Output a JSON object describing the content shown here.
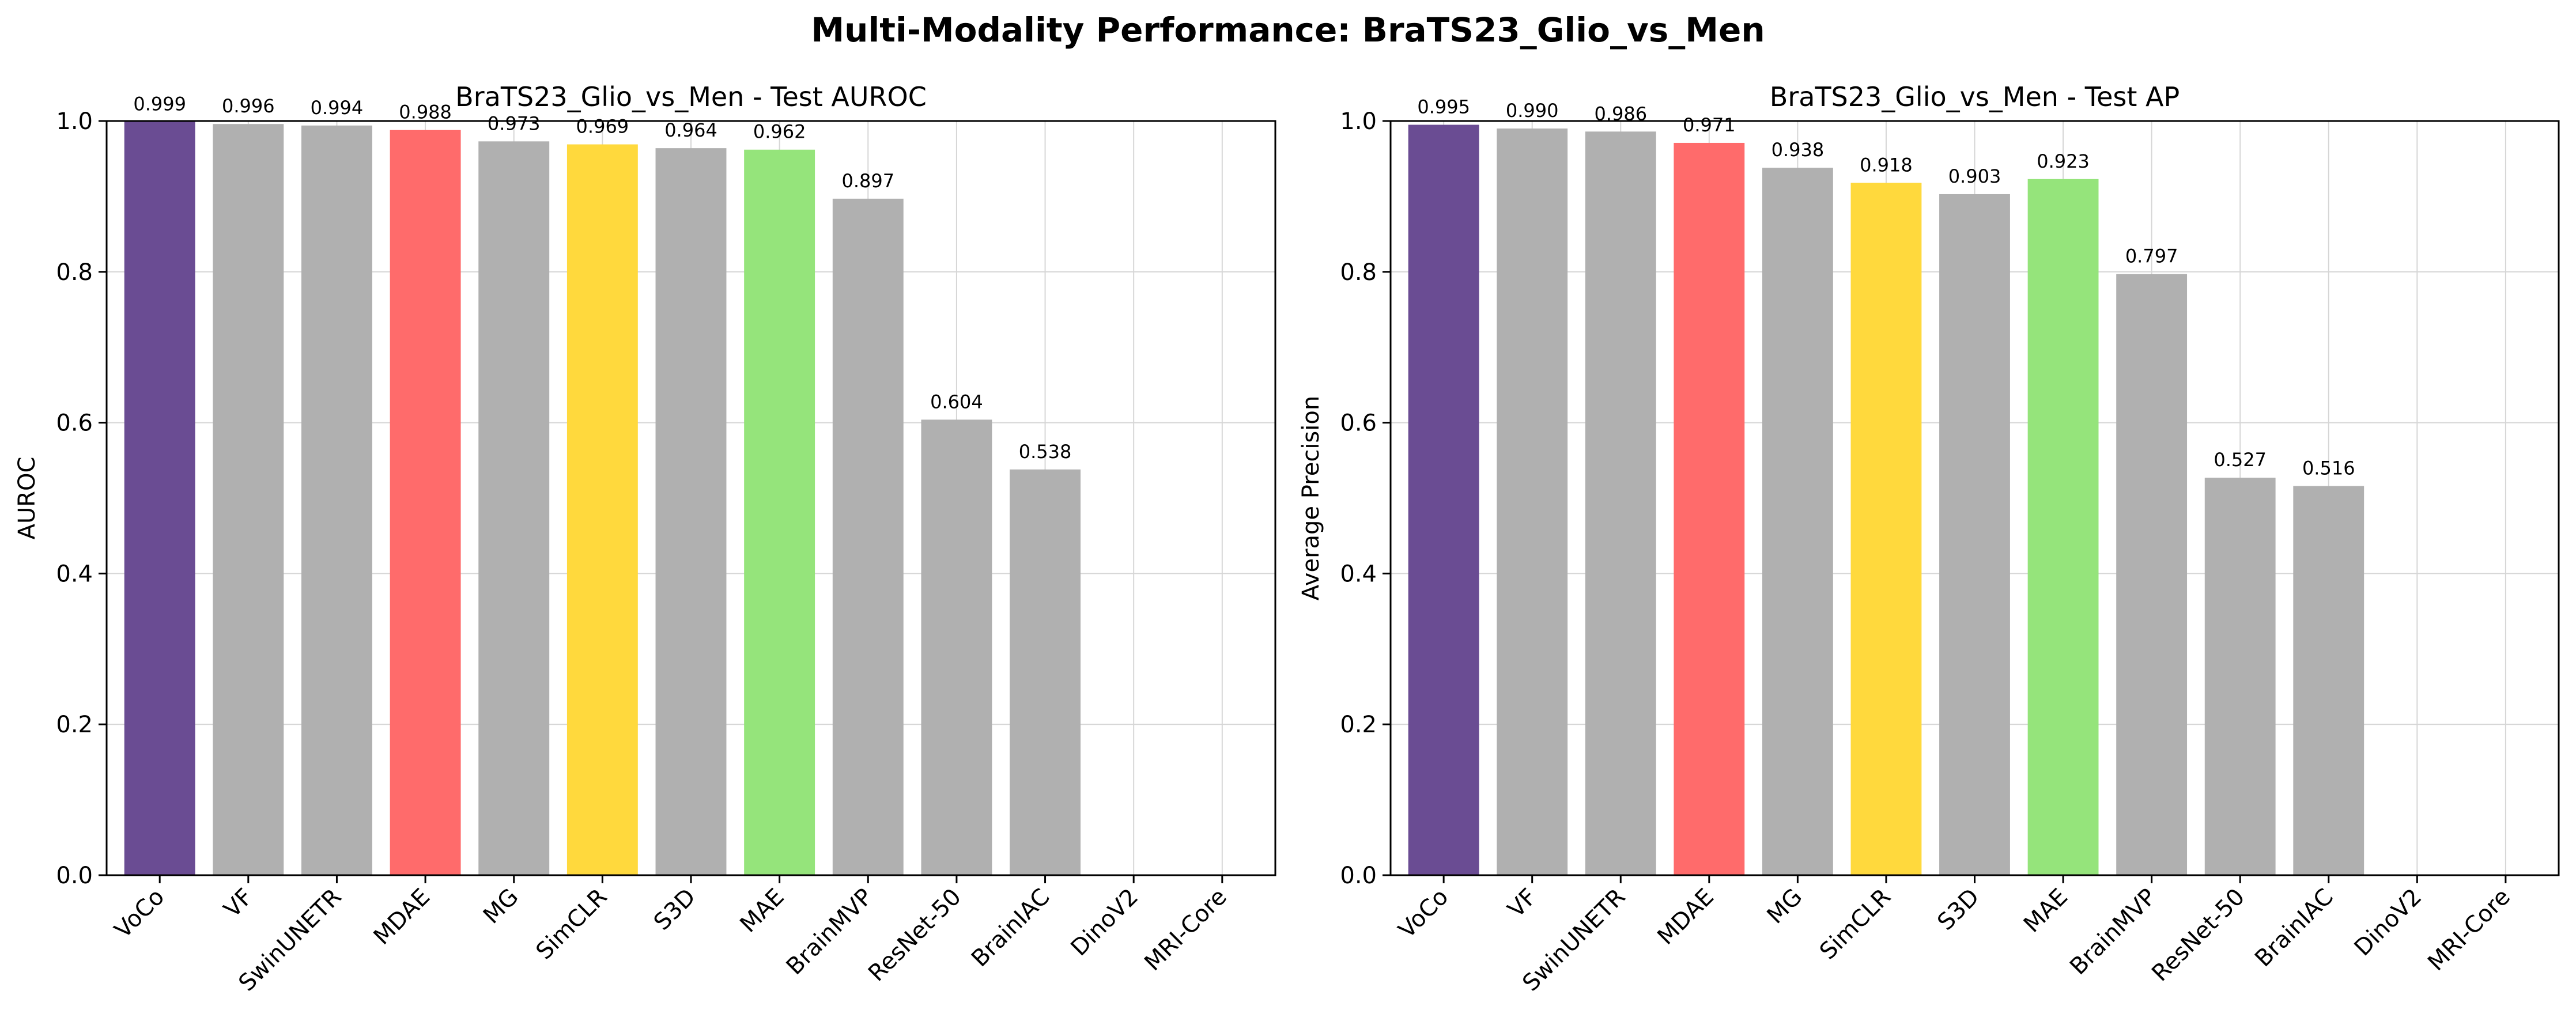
{
  "figure": {
    "title": "Multi-Modality Performance: BraTS23_Glio_vs_Men"
  },
  "colors": {
    "highlight": {
      "VoCo": "#6a4c93",
      "MDAE": "#ff6b6b",
      "SimCLR": "#ffd93d",
      "MAE": "#95e47b"
    },
    "default": "#b0b0b0"
  },
  "chart_data": [
    {
      "type": "bar",
      "title": "BraTS23_Glio_vs_Men - Test AUROC",
      "xlabel": "",
      "ylabel": "AUROC",
      "ylim": [
        0,
        1.0
      ],
      "yticks": [
        0.0,
        0.2,
        0.4,
        0.6,
        0.8,
        1.0
      ],
      "grid": true,
      "categories": [
        "VoCo",
        "VF",
        "SwinUNETR",
        "MDAE",
        "MG",
        "SimCLR",
        "S3D",
        "MAE",
        "BrainMVP",
        "ResNet-50",
        "BrainIAC",
        "DinoV2",
        "MRI-Core"
      ],
      "values": [
        0.999,
        0.996,
        0.994,
        0.988,
        0.973,
        0.969,
        0.964,
        0.962,
        0.897,
        0.604,
        0.538,
        null,
        null
      ],
      "labels": [
        "0.999",
        "0.996",
        "0.994",
        "0.988",
        "0.973",
        "0.969",
        "0.964",
        "0.962",
        "0.897",
        "0.604",
        "0.538",
        "",
        ""
      ]
    },
    {
      "type": "bar",
      "title": "BraTS23_Glio_vs_Men - Test AP",
      "xlabel": "",
      "ylabel": "Average Precision",
      "ylim": [
        0,
        1.0
      ],
      "yticks": [
        0.0,
        0.2,
        0.4,
        0.6,
        0.8,
        1.0
      ],
      "grid": true,
      "categories": [
        "VoCo",
        "VF",
        "SwinUNETR",
        "MDAE",
        "MG",
        "SimCLR",
        "S3D",
        "MAE",
        "BrainMVP",
        "ResNet-50",
        "BrainIAC",
        "DinoV2",
        "MRI-Core"
      ],
      "values": [
        0.995,
        0.99,
        0.986,
        0.971,
        0.938,
        0.918,
        0.903,
        0.923,
        0.797,
        0.527,
        0.516,
        null,
        null
      ],
      "labels": [
        "0.995",
        "0.990",
        "0.986",
        "0.971",
        "0.938",
        "0.918",
        "0.903",
        "0.923",
        "0.797",
        "0.527",
        "0.516",
        "",
        ""
      ]
    }
  ]
}
